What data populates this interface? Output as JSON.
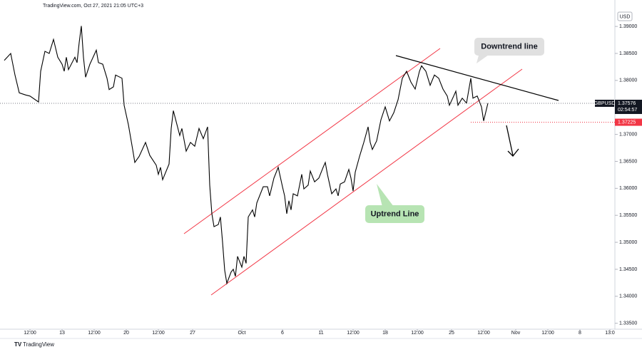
{
  "header": "TradingView.com, Oct 27, 2021 21:05 UTC+3",
  "footer": "TradingView",
  "chart_data": {
    "type": "line",
    "symbol": "GBPUSD",
    "currency": "USD",
    "color": "#000000",
    "x": [
      2,
      5,
      7,
      9,
      12,
      14,
      18,
      19,
      21,
      23,
      25,
      27,
      29,
      30,
      31,
      32,
      35,
      36,
      37,
      38,
      39,
      40,
      42,
      45,
      46,
      48,
      50,
      51,
      53,
      54,
      57,
      58,
      60,
      62,
      63,
      65,
      68,
      70,
      73,
      74,
      75,
      76,
      79,
      80,
      81,
      84,
      85,
      87,
      89,
      91,
      93,
      95,
      97,
      98,
      99,
      100,
      102,
      103,
      104,
      105,
      106,
      108,
      109,
      110,
      111,
      113,
      114,
      115,
      116,
      118,
      119,
      120,
      123,
      125,
      126,
      128,
      130,
      132,
      133,
      134,
      135,
      136,
      137,
      139,
      140,
      141,
      142,
      144,
      145,
      147,
      149,
      151,
      152,
      153,
      155,
      157,
      158,
      159,
      161,
      163,
      164,
      165,
      166,
      168,
      170,
      172,
      173,
      174,
      176,
      178,
      180,
      182,
      184,
      186,
      188,
      190,
      192,
      194,
      196,
      197,
      199,
      201,
      203,
      205,
      207,
      209,
      210,
      212,
      213,
      214,
      216,
      218,
      220,
      221,
      223,
      225,
      226,
      228
    ],
    "values": [
      1.3837,
      1.385,
      1.381,
      1.3777,
      1.3773,
      1.3771,
      1.376,
      1.3817,
      1.3854,
      1.385,
      1.3876,
      1.3843,
      1.383,
      1.3817,
      1.3843,
      1.382,
      1.3843,
      1.3833,
      1.387,
      1.3901,
      1.3843,
      1.3806,
      1.383,
      1.3856,
      1.3833,
      1.383,
      1.3804,
      1.3783,
      1.3788,
      1.381,
      1.3804,
      1.3754,
      1.3718,
      1.3672,
      1.3648,
      1.3659,
      1.3685,
      1.3661,
      1.3643,
      1.3626,
      1.3639,
      1.3616,
      1.3645,
      1.3711,
      1.3744,
      1.3698,
      1.3711,
      1.3669,
      1.3685,
      1.3678,
      1.3711,
      1.3692,
      1.3714,
      1.3606,
      1.3553,
      1.3529,
      1.3533,
      1.3547,
      1.35,
      1.3448,
      1.3424,
      1.3445,
      1.345,
      1.3437,
      1.3474,
      1.3454,
      1.3474,
      1.3461,
      1.3547,
      1.356,
      1.3547,
      1.3573,
      1.3603,
      1.3603,
      1.3586,
      1.3619,
      1.3639,
      1.3603,
      1.3586,
      1.3553,
      1.3577,
      1.356,
      1.359,
      1.3586,
      1.3606,
      1.3626,
      1.3599,
      1.3606,
      1.3632,
      1.3612,
      1.3619,
      1.3639,
      1.3648,
      1.3626,
      1.359,
      1.3599,
      1.3586,
      1.3608,
      1.3612,
      1.3635,
      1.3619,
      1.3595,
      1.363,
      1.3659,
      1.3685,
      1.3714,
      1.3685,
      1.3672,
      1.3688,
      1.3727,
      1.3751,
      1.3725,
      1.374,
      1.3764,
      1.3804,
      1.3817,
      1.3797,
      1.3784,
      1.3817,
      1.3827,
      1.3817,
      1.3791,
      1.381,
      1.3804,
      1.3784,
      1.3771,
      1.3754,
      1.3771,
      1.378,
      1.3754,
      1.3767,
      1.3758,
      1.3804,
      1.3767,
      1.3771,
      1.3751,
      1.3725,
      1.3758
    ],
    "xlim": [
      0,
      287
    ],
    "ylim": [
      1.3339,
      1.3949
    ],
    "xticks": [
      {
        "value": 14,
        "label": "12:00"
      },
      {
        "value": 29,
        "label": "13"
      },
      {
        "value": 44,
        "label": "12:00"
      },
      {
        "value": 59,
        "label": "20"
      },
      {
        "value": 74,
        "label": "12:00"
      },
      {
        "value": 90,
        "label": "27"
      },
      {
        "value": 113,
        "label": "Oct"
      },
      {
        "value": 132,
        "label": "6"
      },
      {
        "value": 150,
        "label": "11"
      },
      {
        "value": 165,
        "label": "12:00"
      },
      {
        "value": 180,
        "label": "18"
      },
      {
        "value": 195,
        "label": "12:00"
      },
      {
        "value": 211,
        "label": "25"
      },
      {
        "value": 226,
        "label": "12:00"
      },
      {
        "value": 241,
        "label": "Nov"
      },
      {
        "value": 256,
        "label": "12:00"
      },
      {
        "value": 271,
        "label": "8"
      },
      {
        "value": 285,
        "label": "13:0"
      }
    ],
    "yticks": [
      {
        "value": 1.39,
        "label": "1.39000"
      },
      {
        "value": 1.385,
        "label": "1.38500"
      },
      {
        "value": 1.38,
        "label": "1.38000"
      },
      {
        "value": 1.37,
        "label": "1.37000"
      },
      {
        "value": 1.365,
        "label": "1.36500"
      },
      {
        "value": 1.36,
        "label": "1.36000"
      },
      {
        "value": 1.355,
        "label": "1.35500"
      },
      {
        "value": 1.35,
        "label": "1.35000"
      },
      {
        "value": 1.345,
        "label": "1.34500"
      },
      {
        "value": 1.34,
        "label": "1.34000"
      },
      {
        "value": 1.335,
        "label": "1.33500"
      }
    ],
    "last_price": 1.37576,
    "countdown": "02:54:57",
    "level": 1.37225,
    "level_color": "#f23645",
    "annotations": [
      "Downtrend line",
      "Uptrend Line"
    ]
  }
}
